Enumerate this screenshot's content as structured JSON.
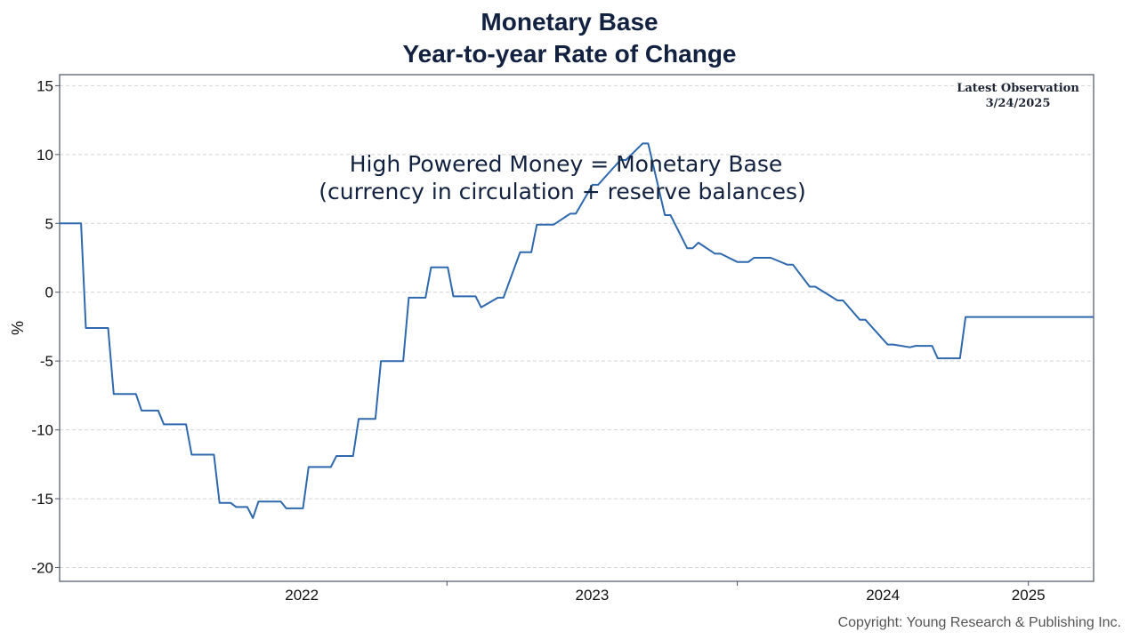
{
  "chart_data": {
    "type": "line",
    "title": "Monetary Base",
    "subtitle": "Year-to-year Rate of Change",
    "ylabel": "%",
    "xlabel": "",
    "ylim": [
      -21,
      15.8
    ],
    "y_ticks": [
      "15",
      "10",
      "5",
      "0",
      "-5",
      "-10",
      "-15",
      "-20"
    ],
    "y_tick_values": [
      15,
      10,
      5,
      0,
      -5,
      -10,
      -15,
      -20
    ],
    "x_ticks": [
      "2022",
      "2023",
      "2024",
      "2025"
    ],
    "x_range": [
      "2021-09-01",
      "2025-03-24"
    ],
    "grid": "horizontal dashed",
    "annotation": [
      "High Powered Money = Monetary Base",
      "(currency in circulation + reserve balances)"
    ],
    "latest_observation": [
      "Latest Observation",
      "3/24/2025"
    ],
    "line_color": "#2f69ad",
    "series": [
      {
        "x": [
          "2021-09-01",
          "2021-09-28",
          "2021-10-04",
          "2021-11-01",
          "2021-11-08",
          "2021-12-06",
          "2021-12-13",
          "2022-01-03",
          "2022-01-10",
          "2022-02-07",
          "2022-02-14",
          "2022-03-14",
          "2022-03-21",
          "2022-04-04",
          "2022-04-11",
          "2022-04-25",
          "2022-05-02",
          "2022-05-09",
          "2022-05-16",
          "2022-06-06",
          "2022-06-13",
          "2022-07-04",
          "2022-07-11",
          "2022-08-08",
          "2022-08-15",
          "2022-09-05",
          "2022-09-12",
          "2022-10-03",
          "2022-10-10",
          "2022-11-07",
          "2022-11-14",
          "2022-12-05",
          "2022-12-12",
          "2023-01-02",
          "2023-01-09",
          "2023-02-06",
          "2023-02-13",
          "2023-03-06",
          "2023-03-13",
          "2023-04-03",
          "2023-04-10",
          "2023-04-17",
          "2023-04-24",
          "2023-05-01",
          "2023-05-08",
          "2023-05-15",
          "2023-06-05",
          "2023-06-12",
          "2023-07-03",
          "2023-07-10",
          "2023-08-07",
          "2023-08-14",
          "2023-09-04",
          "2023-09-11",
          "2023-10-02",
          "2023-10-09",
          "2023-10-30",
          "2023-11-06",
          "2023-11-13",
          "2023-12-04",
          "2023-12-11",
          "2024-01-01",
          "2024-01-08",
          "2024-01-15",
          "2024-01-22",
          "2024-02-05",
          "2024-02-12",
          "2024-03-04",
          "2024-03-11",
          "2024-04-01",
          "2024-04-08",
          "2024-05-06",
          "2024-05-13",
          "2024-06-03",
          "2024-06-10",
          "2024-07-08",
          "2024-07-15",
          "2024-08-05",
          "2024-08-12",
          "2024-09-02",
          "2024-09-09",
          "2024-10-07",
          "2024-10-14",
          "2024-11-04",
          "2024-11-11",
          "2024-11-18",
          "2024-11-25",
          "2024-12-23",
          "2024-12-30",
          "2025-01-27",
          "2025-02-03",
          "2025-03-24"
        ],
        "values": [
          5.0,
          5.0,
          -2.6,
          -2.6,
          -7.4,
          -7.4,
          -8.6,
          -8.6,
          -9.6,
          -9.6,
          -11.8,
          -11.8,
          -15.3,
          -15.3,
          -15.6,
          -15.6,
          -16.4,
          -15.2,
          -15.2,
          -15.2,
          -15.7,
          -15.7,
          -12.7,
          -12.7,
          -11.9,
          -11.9,
          -9.2,
          -9.2,
          -5.0,
          -5.0,
          -0.4,
          -0.4,
          1.8,
          1.8,
          -0.3,
          -0.3,
          -1.1,
          -0.4,
          -0.4,
          2.9,
          2.9,
          2.9,
          4.9,
          4.9,
          4.9,
          4.9,
          5.7,
          5.7,
          7.8,
          7.8,
          9.6,
          9.6,
          10.8,
          10.8,
          5.6,
          5.6,
          3.2,
          3.2,
          3.6,
          2.8,
          2.8,
          2.2,
          2.2,
          2.2,
          2.5,
          2.5,
          2.5,
          2.0,
          2.0,
          0.4,
          0.4,
          -0.6,
          -0.6,
          -2.0,
          -2.0,
          -3.8,
          -3.8,
          -4.0,
          -3.9,
          -3.9,
          -4.8,
          -4.8,
          -1.8,
          -1.8,
          -1.8,
          -1.8,
          -1.8,
          -1.8,
          -1.8,
          -1.8,
          -1.8,
          -1.8
        ]
      }
    ]
  },
  "copyright": "Copyright: Young Research & Publishing Inc."
}
